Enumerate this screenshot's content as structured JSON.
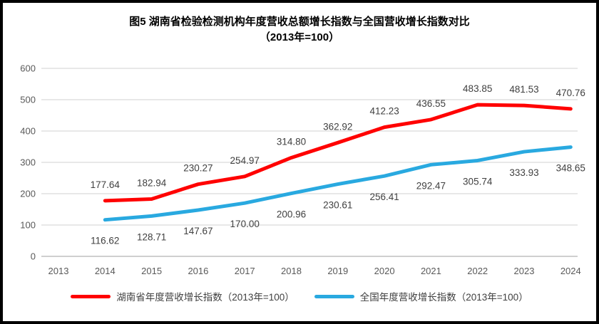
{
  "title": {
    "line1": "图5 湖南省检验检测机构年度营收总额增长指数与全国营收增长指数对比",
    "line2": "（2013年=100）"
  },
  "colors": {
    "frame_border": "#000000",
    "background": "#ffffff",
    "gridline": "#d9d9d9",
    "axis_line": "#bfbfbf",
    "tick_text": "#595959",
    "data_label_text": "#404040",
    "title_text": "#000000",
    "series_hunan": "#ff0000",
    "series_national": "#29a9e0"
  },
  "chart_data": {
    "type": "line",
    "title": "图5 湖南省检验检测机构年度营收总额增长指数与全国营收增长指数对比（2013年=100）",
    "x_ticks": [
      "2013",
      "2014",
      "2015",
      "2016",
      "2017",
      "2018",
      "2019",
      "2020",
      "2021",
      "2022",
      "2023",
      "2024"
    ],
    "x": [
      2014,
      2015,
      2016,
      2017,
      2018,
      2019,
      2020,
      2021,
      2022,
      2023,
      2024
    ],
    "series": [
      {
        "name": "湖南省年度营收增长指数（2013年=100）",
        "color": "#ff0000",
        "values": [
          177.64,
          182.94,
          230.27,
          254.97,
          314.8,
          362.92,
          412.23,
          436.55,
          483.85,
          481.53,
          470.76
        ],
        "label_position": "above"
      },
      {
        "name": "全国年度营收增长指数（2013年=100）",
        "color": "#29a9e0",
        "values": [
          116.62,
          128.71,
          147.67,
          170.0,
          200.96,
          230.61,
          256.41,
          292.47,
          305.74,
          333.93,
          348.65
        ],
        "label_position": "below"
      }
    ],
    "ylim": [
      0,
      600
    ],
    "y_ticks": [
      0,
      100,
      200,
      300,
      400,
      500,
      600
    ],
    "grid": true,
    "data_labels": true,
    "label_decimals": 2,
    "legend_position": "bottom",
    "xlabel": "",
    "ylabel": ""
  }
}
